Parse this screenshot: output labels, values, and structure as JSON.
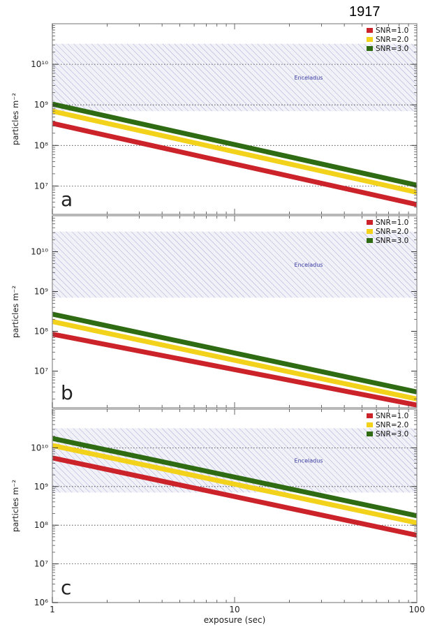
{
  "page_number": "1917",
  "colors": {
    "snr1": "#cc2229",
    "snr2": "#f2d21b",
    "snr3": "#2e6b12",
    "band": "#3a3aa0",
    "frame": "#9a9a9a"
  },
  "chart_data": [
    {
      "type": "line",
      "panel_label": "a",
      "x_scale": "log",
      "y_scale": "log",
      "xlim": [
        1,
        100
      ],
      "ylim": [
        2000000.0,
        100000000000.0
      ],
      "ylabel": "particles m⁻²",
      "y_ticks": [
        {
          "value": 10000000.0,
          "label": "10⁷"
        },
        {
          "value": 100000000.0,
          "label": "10⁸"
        },
        {
          "value": 1000000000.0,
          "label": "10⁹"
        },
        {
          "value": 10000000000.0,
          "label": "10¹⁰"
        }
      ],
      "grid": "horizontal dotted at decades",
      "legend_position": "top-right",
      "band": {
        "label": "Enceladus",
        "range": [
          700000000.0,
          32000000000.0
        ]
      },
      "series": [
        {
          "name": "SNR=1.0",
          "x": [
            1,
            100
          ],
          "y": [
            350000000.0,
            3500000.0
          ]
        },
        {
          "name": "SNR=2.0",
          "x": [
            1,
            100
          ],
          "y": [
            700000000.0,
            7000000.0
          ]
        },
        {
          "name": "SNR=3.0",
          "x": [
            1,
            100
          ],
          "y": [
            1050000000.0,
            10500000.0
          ]
        }
      ]
    },
    {
      "type": "line",
      "panel_label": "b",
      "x_scale": "log",
      "y_scale": "log",
      "xlim": [
        1,
        100
      ],
      "ylim": [
        1200000.0,
        80000000000.0
      ],
      "ylabel": "particles m⁻²",
      "y_ticks": [
        {
          "value": 10000000.0,
          "label": "10⁷"
        },
        {
          "value": 100000000.0,
          "label": "10⁸"
        },
        {
          "value": 1000000000.0,
          "label": "10⁹"
        },
        {
          "value": 10000000000.0,
          "label": "10¹⁰"
        }
      ],
      "grid": "none",
      "legend_position": "top-right",
      "band": {
        "label": "Enceladus",
        "range": [
          700000000.0,
          32000000000.0
        ]
      },
      "series": [
        {
          "name": "SNR=1.0",
          "x": [
            1,
            100
          ],
          "y": [
            85000000.0,
            1400000.0
          ]
        },
        {
          "name": "SNR=2.0",
          "x": [
            1,
            100
          ],
          "y": [
            175000000.0,
            2000000.0
          ]
        },
        {
          "name": "SNR=3.0",
          "x": [
            1,
            100
          ],
          "y": [
            270000000.0,
            3000000.0
          ]
        }
      ]
    },
    {
      "type": "line",
      "panel_label": "c",
      "x_scale": "log",
      "y_scale": "log",
      "xlim": [
        1,
        100
      ],
      "ylim": [
        1000000.0,
        100000000000.0
      ],
      "xlabel": "exposure (sec)",
      "ylabel": "particles m⁻²",
      "x_ticks": [
        {
          "value": 1,
          "label": "1"
        },
        {
          "value": 10,
          "label": "10"
        },
        {
          "value": 100,
          "label": "100"
        }
      ],
      "y_ticks": [
        {
          "value": 1000000.0,
          "label": "10⁶"
        },
        {
          "value": 10000000.0,
          "label": "10⁷"
        },
        {
          "value": 100000000.0,
          "label": "10⁸"
        },
        {
          "value": 1000000000.0,
          "label": "10⁹"
        },
        {
          "value": 10000000000.0,
          "label": "10¹⁰"
        }
      ],
      "grid": "horizontal dotted at decades",
      "legend_position": "top-right",
      "band": {
        "label": "Enceladus",
        "range": [
          700000000.0,
          32000000000.0
        ]
      },
      "series": [
        {
          "name": "SNR=1.0",
          "x": [
            1,
            100
          ],
          "y": [
            5500000000.0,
            55000000.0
          ]
        },
        {
          "name": "SNR=2.0",
          "x": [
            1,
            100
          ],
          "y": [
            11500000000.0,
            115000000.0
          ]
        },
        {
          "name": "SNR=3.0",
          "x": [
            1,
            100
          ],
          "y": [
            17500000000.0,
            175000000.0
          ]
        }
      ]
    }
  ]
}
